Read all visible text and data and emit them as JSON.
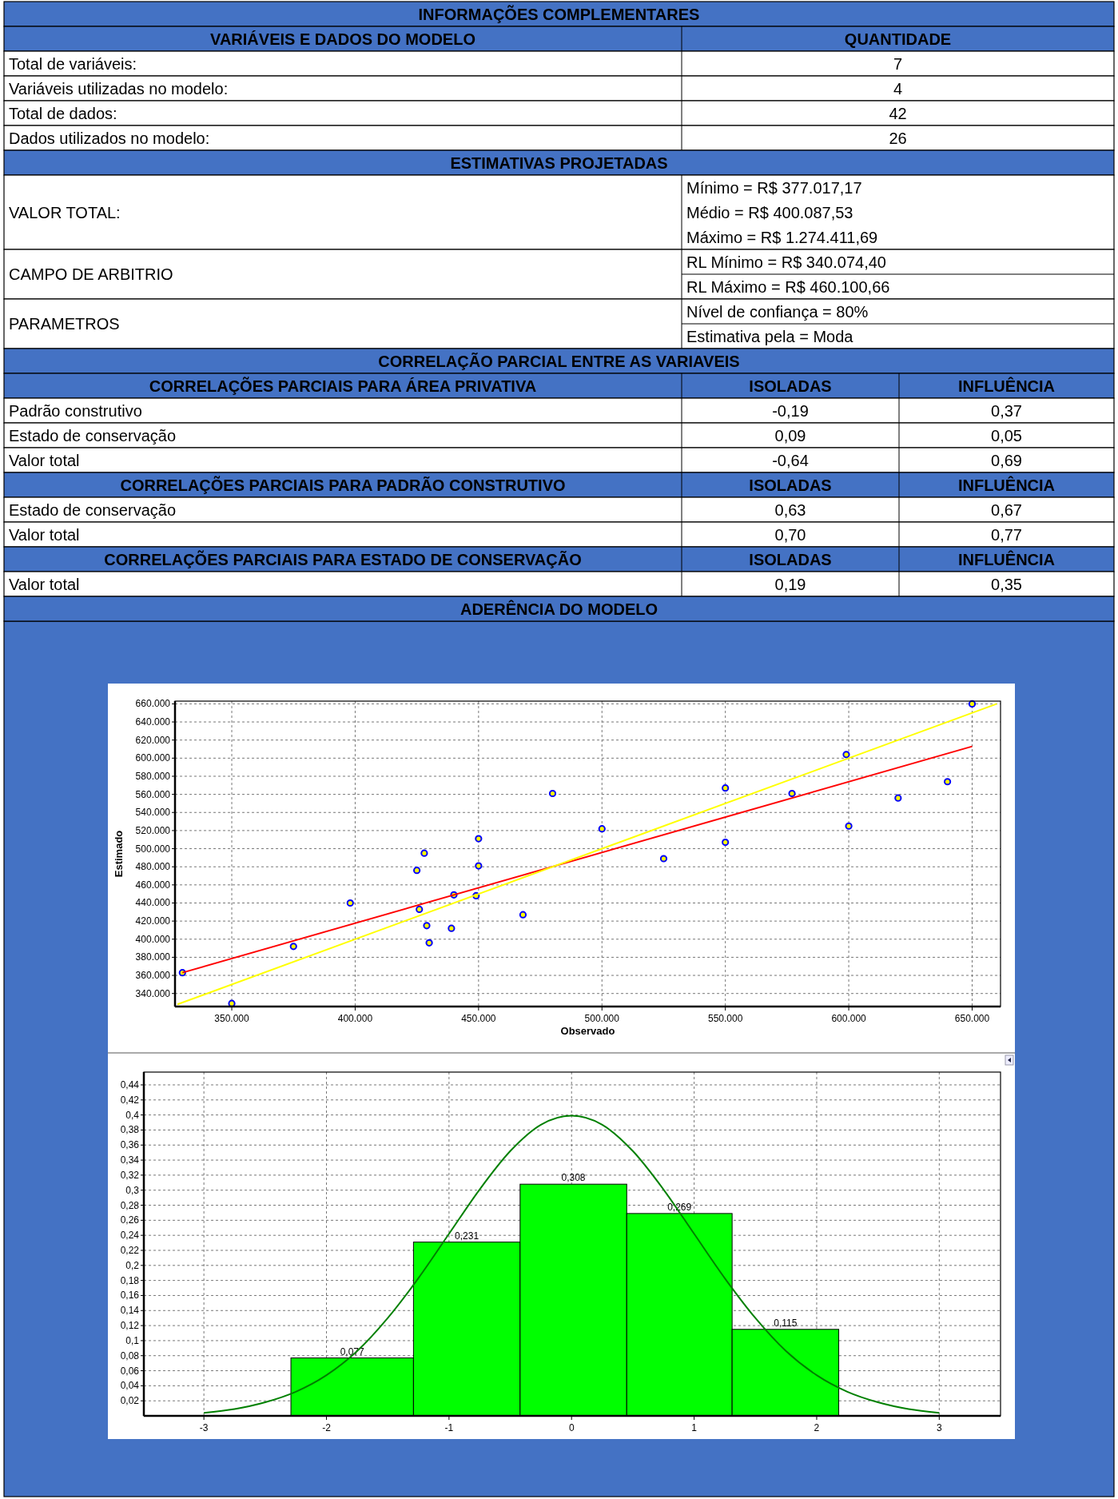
{
  "chart_data": [
    {
      "type": "other",
      "title": "INFORMAÇÕES COMPLEMENTARES",
      "annotations": [
        "VARIÁVEIS E DADOS DO MODELO",
        "QUANTIDADE",
        "Total de variáveis:",
        "7",
        "Variáveis utilizadas no modelo:",
        "4",
        "Total de dados:",
        "42",
        "Dados utilizados no modelo:",
        "26",
        "ESTIMATIVAS PROJETADAS",
        "VALOR TOTAL:",
        "Mínimo = R$ 377.017,17",
        "Médio = R$ 400.087,53",
        "Máximo = R$ 1.274.411,69",
        "CAMPO DE ARBITRIO",
        "RL Mínimo = R$ 340.074,40",
        "RL Máximo = R$ 460.100,66",
        "PARAMETROS",
        "Nível de confiança = 80%",
        "Estimativa pela = Moda",
        "CORRELAÇÃO PARCIAL ENTRE AS VARIAVEIS",
        "CORRELAÇÕES PARCIAIS PARA ÁREA PRIVATIVA",
        "ISOLADAS",
        "INFLUÊNCIA",
        "Padrão construtivo",
        "-0,19",
        "0,37",
        "Estado de conservação",
        "0,09",
        "0,05",
        "Valor total",
        "-0,64",
        "0,69",
        "CORRELAÇÕES PARCIAIS PARA PADRÃO CONSTRUTIVO",
        "ISOLADAS",
        "INFLUÊNCIA",
        "Estado de conservação",
        "0,63",
        "0,67",
        "Valor total",
        "0,70",
        "0,77",
        "CORRELAÇÕES PARCIAIS PARA ESTADO DE CONSERVAÇÃO",
        "ISOLADAS",
        "INFLUÊNCIA",
        "Valor total",
        "0,19",
        "0,35",
        "ADERÊNCIA DO MODELO"
      ]
    },
    {
      "type": "scatter",
      "xlabel": "Observado",
      "ylabel": "Estimado",
      "xlim": [
        327000,
        661500
      ],
      "ylim": [
        325600,
        663000
      ],
      "xticks": [
        {
          "value": 350000,
          "label": "350.000"
        },
        {
          "value": 400000,
          "label": "400.000"
        },
        {
          "value": 450000,
          "label": "450.000"
        },
        {
          "value": 500000,
          "label": "500.000"
        },
        {
          "value": 550000,
          "label": "550.000"
        },
        {
          "value": 600000,
          "label": "600.000"
        },
        {
          "value": 650000,
          "label": "650.000"
        }
      ],
      "yticks": [
        {
          "value": 340000,
          "label": "340.000"
        },
        {
          "value": 360000,
          "label": "360.000"
        },
        {
          "value": 380000,
          "label": "380.000"
        },
        {
          "value": 400000,
          "label": "400.000"
        },
        {
          "value": 420000,
          "label": "420.000"
        },
        {
          "value": 440000,
          "label": "440.000"
        },
        {
          "value": 460000,
          "label": "460.000"
        },
        {
          "value": 480000,
          "label": "480.000"
        },
        {
          "value": 500000,
          "label": "500.000"
        },
        {
          "value": 520000,
          "label": "520.000"
        },
        {
          "value": 540000,
          "label": "540.000"
        },
        {
          "value": 560000,
          "label": "560.000"
        },
        {
          "value": 580000,
          "label": "580.000"
        },
        {
          "value": 600000,
          "label": "600.000"
        },
        {
          "value": 620000,
          "label": "620.000"
        },
        {
          "value": 640000,
          "label": "640.000"
        },
        {
          "value": 660000,
          "label": "660.000"
        }
      ],
      "grid": true,
      "series": [
        {
          "type": "scatter",
          "marker": "circle",
          "color": "#0000ff",
          "x": [
            330000,
            350000,
            375000,
            398000,
            425000,
            428000,
            426000,
            429000,
            430000,
            440000,
            439000,
            450000,
            450000,
            449000,
            468000,
            480000,
            500000,
            525000,
            550000,
            550000,
            577000,
            599000,
            600000,
            620000,
            640000,
            650000
          ],
          "values": [
            363000,
            329000,
            392000,
            440000,
            476000,
            495000,
            433000,
            415000,
            396000,
            449000,
            412000,
            511000,
            481000,
            448000,
            427000,
            561000,
            522000,
            489000,
            567000,
            507000,
            561000,
            604000,
            525000,
            556000,
            574000,
            660000
          ]
        },
        {
          "type": "line",
          "color": "#ff0000",
          "x": [
            330000,
            650000
          ],
          "values": [
            363000,
            613000
          ]
        },
        {
          "type": "line",
          "color": "#ffff00",
          "x": [
            328000,
            660000
          ],
          "values": [
            328000,
            660000
          ]
        }
      ]
    },
    {
      "type": "histogram",
      "xlim": [
        -3.49,
        3.5
      ],
      "ylim": [
        0,
        0.457
      ],
      "xticks": [
        -3,
        -2,
        -1,
        0,
        1,
        2,
        3
      ],
      "yticks": [
        {
          "value": 0.02,
          "label": "0,02"
        },
        {
          "value": 0.04,
          "label": "0,04"
        },
        {
          "value": 0.06,
          "label": "0,06"
        },
        {
          "value": 0.08,
          "label": "0,08"
        },
        {
          "value": 0.1,
          "label": "0,1"
        },
        {
          "value": 0.12,
          "label": "0,12"
        },
        {
          "value": 0.14,
          "label": "0,14"
        },
        {
          "value": 0.16,
          "label": "0,16"
        },
        {
          "value": 0.18,
          "label": "0,18"
        },
        {
          "value": 0.2,
          "label": "0,2"
        },
        {
          "value": 0.22,
          "label": "0,22"
        },
        {
          "value": 0.24,
          "label": "0,24"
        },
        {
          "value": 0.26,
          "label": "0,26"
        },
        {
          "value": 0.28,
          "label": "0,28"
        },
        {
          "value": 0.3,
          "label": "0,3"
        },
        {
          "value": 0.32,
          "label": "0,32"
        },
        {
          "value": 0.34,
          "label": "0,34"
        },
        {
          "value": 0.36,
          "label": "0,36"
        },
        {
          "value": 0.38,
          "label": "0,38"
        },
        {
          "value": 0.4,
          "label": "0,4"
        },
        {
          "value": 0.42,
          "label": "0,42"
        },
        {
          "value": 0.44,
          "label": "0,44"
        }
      ],
      "grid": true,
      "bins": [
        -2.29,
        -1.29,
        -0.42,
        0.45,
        1.31,
        2.18
      ],
      "series": [
        {
          "type": "histogram",
          "color": "#00ff00",
          "values": [
            0.077,
            0.231,
            0.308,
            0.269,
            0.115
          ],
          "value_labels": [
            "0,077",
            "0,231",
            "0,308",
            "0,269",
            "0,115"
          ]
        },
        {
          "type": "line",
          "color": "#008000",
          "x": [
            -3,
            -2.75,
            -2.5,
            -2.25,
            -2,
            -1.75,
            -1.5,
            -1.25,
            -1,
            -0.75,
            -0.5,
            -0.25,
            0,
            0.25,
            0.5,
            0.75,
            1,
            1.25,
            1.5,
            1.75,
            2,
            2.25,
            2.5,
            2.75,
            3
          ],
          "values": [
            0.004,
            0.009,
            0.018,
            0.032,
            0.054,
            0.086,
            0.13,
            0.183,
            0.242,
            0.301,
            0.352,
            0.387,
            0.399,
            0.387,
            0.352,
            0.301,
            0.242,
            0.183,
            0.13,
            0.086,
            0.054,
            0.032,
            0.018,
            0.009,
            0.004
          ]
        }
      ]
    }
  ]
}
